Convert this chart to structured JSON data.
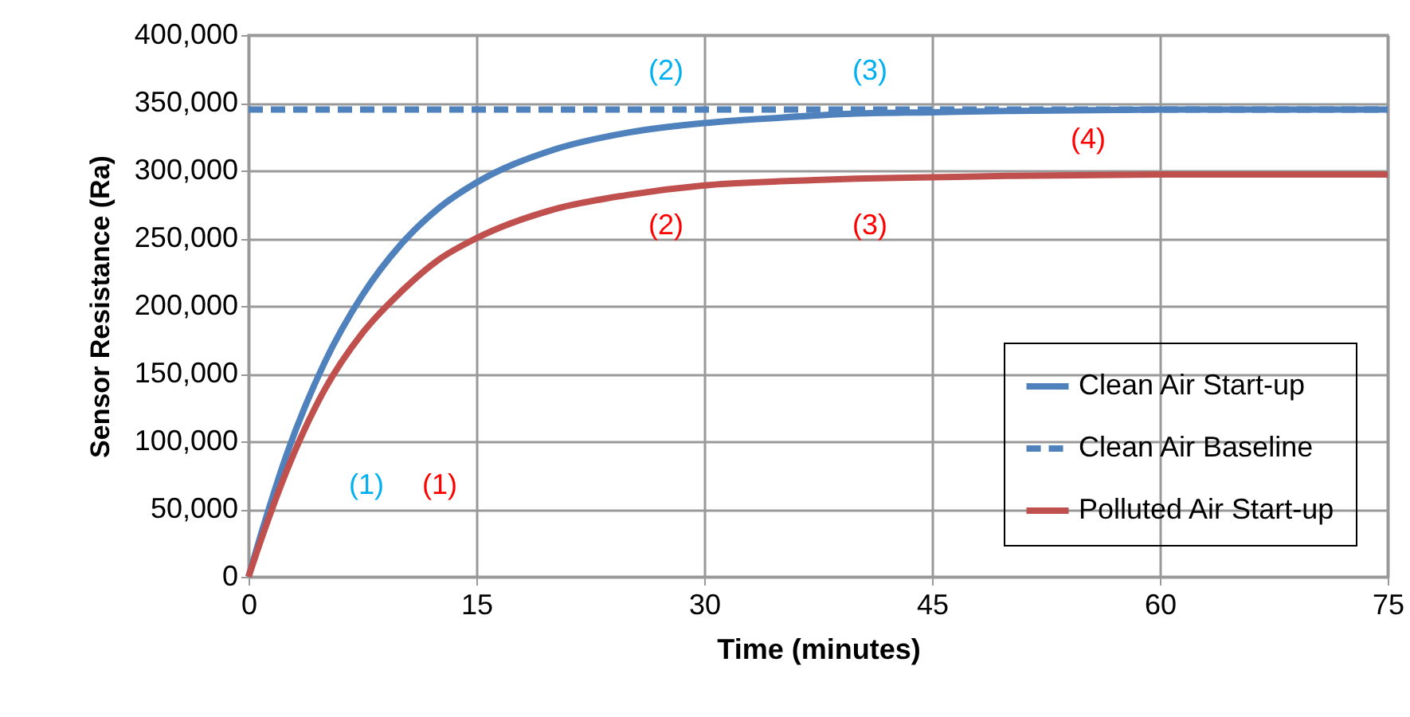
{
  "chart_data": {
    "type": "line",
    "xlabel": "Time (minutes)",
    "ylabel": "Sensor Resistance (Ra)",
    "x": [
      0,
      1,
      2.5,
      5,
      7.5,
      10,
      12.5,
      15,
      20,
      25,
      30,
      35,
      40,
      45,
      50,
      60,
      75
    ],
    "series": [
      {
        "name": "Clean Air Start-up",
        "color": "#4f81bd",
        "line_style": "solid",
        "values": [
          0,
          38000,
          90000,
          158000,
          208000,
          245000,
          272000,
          291000,
          315000,
          328000,
          335000,
          339000,
          342000,
          343000,
          344000,
          345000,
          345000
        ]
      },
      {
        "name": "Clean Air Baseline",
        "color": "#4f81bd",
        "line_style": "dashed",
        "x": [
          0,
          75
        ],
        "values": [
          345000,
          345000
        ]
      },
      {
        "name": "Polluted Air Start-up",
        "color": "#c0504d",
        "line_style": "solid",
        "values": [
          0,
          33000,
          78000,
          138000,
          180000,
          210000,
          234000,
          250000,
          271000,
          282000,
          289000,
          292000,
          294000,
          295000,
          296000,
          297000,
          297000
        ]
      }
    ],
    "annotations": [
      "(1)",
      "(1)",
      "(2)",
      "(3)",
      "(2)",
      "(3)",
      "(4)"
    ],
    "xlim": [
      0,
      75
    ],
    "xticks": [
      0,
      15,
      30,
      45,
      60,
      75
    ],
    "ylim": [
      0,
      400000
    ],
    "yticks": [
      0,
      {
        "value": 50000,
        "label": "50,000"
      },
      {
        "value": 100000,
        "label": "100,000"
      },
      {
        "value": 150000,
        "label": "150,000"
      },
      {
        "value": 200000,
        "label": "200,000"
      },
      {
        "value": 250000,
        "label": "250,000"
      },
      {
        "value": 300000,
        "label": "300,000"
      },
      {
        "value": 350000,
        "label": "350,000"
      },
      {
        "value": 400000,
        "label": "400,000"
      }
    ],
    "grid": true,
    "legend": "bottom right"
  }
}
